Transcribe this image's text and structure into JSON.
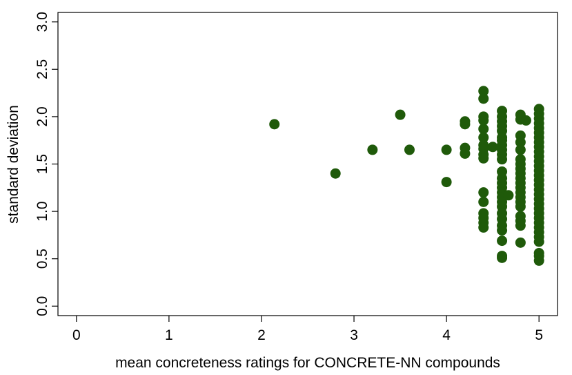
{
  "chart_data": {
    "type": "scatter",
    "title": "",
    "xlabel": "mean concreteness ratings for CONCRETE-NN compounds",
    "ylabel": "standard deviation",
    "xlim": [
      -0.2,
      5.2
    ],
    "ylim": [
      -0.1,
      3.1
    ],
    "x_ticks": [
      0,
      1,
      2,
      3,
      4,
      5
    ],
    "x_tick_labels": [
      "0",
      "1",
      "2",
      "3",
      "4",
      "5"
    ],
    "y_ticks": [
      0.0,
      0.5,
      1.0,
      1.5,
      2.0,
      2.5,
      3.0
    ],
    "y_tick_labels": [
      "0.0",
      "0.5",
      "1.0",
      "1.5",
      "2.0",
      "2.5",
      "3.0"
    ],
    "grid": false,
    "marker_color": "#1f5a0a",
    "points": [
      [
        2.14,
        1.92
      ],
      [
        2.8,
        1.4
      ],
      [
        3.2,
        1.65
      ],
      [
        3.5,
        2.02
      ],
      [
        3.6,
        1.65
      ],
      [
        4.0,
        1.65
      ],
      [
        4.0,
        1.31
      ],
      [
        4.2,
        1.95
      ],
      [
        4.2,
        1.92
      ],
      [
        4.2,
        1.67
      ],
      [
        4.2,
        1.61
      ],
      [
        4.4,
        2.27
      ],
      [
        4.4,
        2.19
      ],
      [
        4.4,
        2.0
      ],
      [
        4.4,
        1.96
      ],
      [
        4.4,
        1.87
      ],
      [
        4.4,
        1.78
      ],
      [
        4.4,
        1.7
      ],
      [
        4.4,
        1.66
      ],
      [
        4.4,
        1.6
      ],
      [
        4.4,
        1.56
      ],
      [
        4.4,
        1.2
      ],
      [
        4.4,
        1.1
      ],
      [
        4.4,
        0.98
      ],
      [
        4.4,
        0.93
      ],
      [
        4.4,
        0.88
      ],
      [
        4.4,
        0.83
      ],
      [
        4.5,
        1.68
      ],
      [
        4.6,
        2.06
      ],
      [
        4.6,
        2.0
      ],
      [
        4.6,
        1.95
      ],
      [
        4.6,
        1.9
      ],
      [
        4.6,
        1.85
      ],
      [
        4.6,
        1.78
      ],
      [
        4.6,
        1.75
      ],
      [
        4.6,
        1.7
      ],
      [
        4.6,
        1.65
      ],
      [
        4.6,
        1.6
      ],
      [
        4.6,
        1.55
      ],
      [
        4.6,
        1.42
      ],
      [
        4.6,
        1.35
      ],
      [
        4.6,
        1.3
      ],
      [
        4.6,
        1.25
      ],
      [
        4.6,
        1.2
      ],
      [
        4.6,
        1.15
      ],
      [
        4.6,
        1.1
      ],
      [
        4.6,
        1.05
      ],
      [
        4.6,
        0.98
      ],
      [
        4.6,
        0.92
      ],
      [
        4.6,
        0.85
      ],
      [
        4.6,
        0.8
      ],
      [
        4.6,
        0.69
      ],
      [
        4.6,
        0.53
      ],
      [
        4.6,
        0.51
      ],
      [
        4.67,
        1.17
      ],
      [
        4.8,
        2.02
      ],
      [
        4.8,
        1.97
      ],
      [
        4.8,
        1.8
      ],
      [
        4.8,
        1.73
      ],
      [
        4.8,
        1.65
      ],
      [
        4.8,
        1.55
      ],
      [
        4.8,
        1.5
      ],
      [
        4.8,
        1.45
      ],
      [
        4.8,
        1.4
      ],
      [
        4.8,
        1.35
      ],
      [
        4.8,
        1.3
      ],
      [
        4.8,
        1.25
      ],
      [
        4.8,
        1.2
      ],
      [
        4.8,
        1.15
      ],
      [
        4.8,
        1.1
      ],
      [
        4.8,
        1.05
      ],
      [
        4.8,
        0.95
      ],
      [
        4.8,
        0.9
      ],
      [
        4.8,
        0.85
      ],
      [
        4.8,
        0.67
      ],
      [
        4.86,
        1.96
      ],
      [
        5.0,
        2.08
      ],
      [
        5.0,
        2.03
      ],
      [
        5.0,
        1.98
      ],
      [
        5.0,
        1.93
      ],
      [
        5.0,
        1.88
      ],
      [
        5.0,
        1.83
      ],
      [
        5.0,
        1.78
      ],
      [
        5.0,
        1.73
      ],
      [
        5.0,
        1.68
      ],
      [
        5.0,
        1.63
      ],
      [
        5.0,
        1.58
      ],
      [
        5.0,
        1.53
      ],
      [
        5.0,
        1.48
      ],
      [
        5.0,
        1.43
      ],
      [
        5.0,
        1.38
      ],
      [
        5.0,
        1.33
      ],
      [
        5.0,
        1.28
      ],
      [
        5.0,
        1.23
      ],
      [
        5.0,
        1.18
      ],
      [
        5.0,
        1.13
      ],
      [
        5.0,
        1.08
      ],
      [
        5.0,
        1.03
      ],
      [
        5.0,
        0.98
      ],
      [
        5.0,
        0.93
      ],
      [
        5.0,
        0.88
      ],
      [
        5.0,
        0.83
      ],
      [
        5.0,
        0.78
      ],
      [
        5.0,
        0.73
      ],
      [
        5.0,
        0.68
      ],
      [
        5.0,
        0.56
      ],
      [
        5.0,
        0.53
      ],
      [
        5.0,
        0.48
      ]
    ]
  }
}
